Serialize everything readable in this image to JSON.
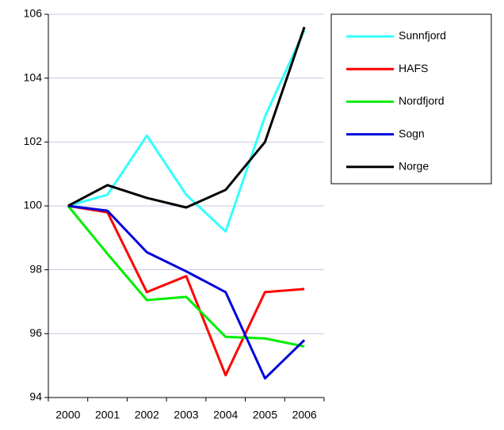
{
  "chart_data": {
    "type": "line",
    "categories": [
      "2000",
      "2001",
      "2002",
      "2003",
      "2004",
      "2005",
      "2006"
    ],
    "series": [
      {
        "name": "Sunnfjord",
        "color": "#33ffff",
        "values": [
          100,
          100.35,
          102.2,
          100.35,
          99.2,
          102.8,
          105.5
        ]
      },
      {
        "name": "HAFS",
        "color": "#ff0000",
        "values": [
          100,
          99.8,
          97.3,
          97.8,
          94.7,
          97.3,
          97.4
        ]
      },
      {
        "name": "Nordfjord",
        "color": "#00ee00",
        "values": [
          100,
          98.5,
          97.05,
          97.15,
          95.9,
          95.85,
          95.6
        ]
      },
      {
        "name": "Sogn",
        "color": "#0000dd",
        "values": [
          100,
          99.85,
          98.55,
          97.95,
          97.3,
          94.6,
          95.8
        ]
      },
      {
        "name": "Norge",
        "color": "#000000",
        "values": [
          100,
          100.65,
          100.25,
          99.95,
          100.5,
          102.0,
          105.6
        ]
      }
    ],
    "ylim": [
      94,
      106
    ],
    "yticks": [
      94,
      96,
      98,
      100,
      102,
      104,
      106
    ],
    "grid": true,
    "legend": "right"
  }
}
